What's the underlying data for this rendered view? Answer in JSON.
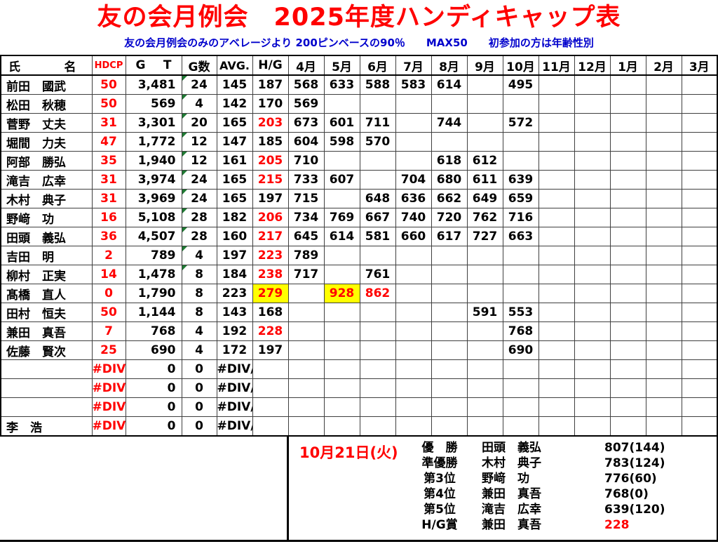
{
  "title": "友の会月例会　2025年度ハンディキャップ表",
  "subtitle": "友の会月例会のみのアベレージより 200ピンベースの90％　　MAX50　　初参加の方は年齢性別",
  "colors": {
    "title_red": "#FF0000",
    "subtitle_blue": "#0000CC",
    "value_red": "#FF0000",
    "highlight_yellow": "#FFFF00",
    "triangle_green": "#1F7A33"
  },
  "table": {
    "headers": {
      "name_parts": [
        "氏",
        "名"
      ],
      "hdcp": "HDCP",
      "gt_parts": [
        "G",
        "T"
      ],
      "games": "G数",
      "avg": "AVG.",
      "hg": "H/G",
      "months": [
        "4月",
        "5月",
        "6月",
        "7月",
        "8月",
        "9月",
        "10月",
        "11月",
        "12月",
        "1月",
        "2月",
        "3月"
      ]
    },
    "rows": [
      {
        "name": "前田　國武",
        "hdcp": "50",
        "gt": "3,481",
        "games": "24",
        "avg": "145",
        "hg": "187",
        "hg_style": "",
        "triangle": true,
        "months": [
          "568",
          "633",
          "588",
          "583",
          "614",
          "",
          "495",
          "",
          "",
          "",
          "",
          ""
        ],
        "month_styles": {}
      },
      {
        "name": "松田　秋穂",
        "hdcp": "50",
        "gt": "569",
        "games": "4",
        "avg": "142",
        "hg": "170",
        "hg_style": "",
        "triangle": true,
        "months": [
          "569",
          "",
          "",
          "",
          "",
          "",
          "",
          "",
          "",
          "",
          "",
          ""
        ],
        "month_styles": {}
      },
      {
        "name": "菅野　丈夫",
        "hdcp": "31",
        "gt": "3,301",
        "games": "20",
        "avg": "165",
        "hg": "203",
        "hg_style": "red",
        "triangle": true,
        "months": [
          "673",
          "601",
          "711",
          "",
          "744",
          "",
          "572",
          "",
          "",
          "",
          "",
          ""
        ],
        "month_styles": {}
      },
      {
        "name": "堀間　力夫",
        "hdcp": "47",
        "gt": "1,772",
        "games": "12",
        "avg": "147",
        "hg": "185",
        "hg_style": "",
        "triangle": true,
        "months": [
          "604",
          "598",
          "570",
          "",
          "",
          "",
          "",
          "",
          "",
          "",
          "",
          ""
        ],
        "month_styles": {}
      },
      {
        "name": "阿部　勝弘",
        "hdcp": "35",
        "gt": "1,940",
        "games": "12",
        "avg": "161",
        "hg": "205",
        "hg_style": "red",
        "triangle": true,
        "months": [
          "710",
          "",
          "",
          "",
          "618",
          "612",
          "",
          "",
          "",
          "",
          "",
          ""
        ],
        "month_styles": {}
      },
      {
        "name": "滝吉　広幸",
        "hdcp": "31",
        "gt": "3,974",
        "games": "24",
        "avg": "165",
        "hg": "215",
        "hg_style": "red",
        "triangle": true,
        "months": [
          "733",
          "607",
          "",
          "704",
          "680",
          "611",
          "639",
          "",
          "",
          "",
          "",
          ""
        ],
        "month_styles": {}
      },
      {
        "name": "木村　典子",
        "hdcp": "31",
        "gt": "3,969",
        "games": "24",
        "avg": "165",
        "hg": "197",
        "hg_style": "",
        "triangle": true,
        "months": [
          "715",
          "",
          "648",
          "636",
          "662",
          "649",
          "659",
          "",
          "",
          "",
          "",
          ""
        ],
        "month_styles": {}
      },
      {
        "name": "野﨑　功",
        "hdcp": "16",
        "gt": "5,108",
        "games": "28",
        "avg": "182",
        "hg": "206",
        "hg_style": "red",
        "triangle": true,
        "months": [
          "734",
          "769",
          "667",
          "740",
          "720",
          "762",
          "716",
          "",
          "",
          "",
          "",
          ""
        ],
        "month_styles": {}
      },
      {
        "name": "田頭　義弘",
        "hdcp": "36",
        "gt": "4,507",
        "games": "28",
        "avg": "160",
        "hg": "217",
        "hg_style": "red",
        "triangle": true,
        "months": [
          "645",
          "614",
          "581",
          "660",
          "617",
          "727",
          "663",
          "",
          "",
          "",
          "",
          ""
        ],
        "month_styles": {}
      },
      {
        "name": "吉田　明",
        "hdcp": "2",
        "gt": "789",
        "games": "4",
        "avg": "197",
        "hg": "223",
        "hg_style": "red",
        "triangle": true,
        "months": [
          "789",
          "",
          "",
          "",
          "",
          "",
          "",
          "",
          "",
          "",
          "",
          ""
        ],
        "month_styles": {}
      },
      {
        "name": "柳村　正実",
        "hdcp": "14",
        "gt": "1,478",
        "games": "8",
        "avg": "184",
        "hg": "238",
        "hg_style": "red",
        "triangle": true,
        "months": [
          "717",
          "",
          "761",
          "",
          "",
          "",
          "",
          "",
          "",
          "",
          "",
          ""
        ],
        "month_styles": {}
      },
      {
        "name": "髙橋　直人",
        "hdcp": "0",
        "gt": "1,790",
        "games": "8",
        "avg": "223",
        "hg": "279",
        "hg_style": "red-yellow",
        "triangle": false,
        "months": [
          "",
          "928",
          "862",
          "",
          "",
          "",
          "",
          "",
          "",
          "",
          "",
          ""
        ],
        "month_styles": {
          "1": "red-yellow",
          "2": "red"
        }
      },
      {
        "name": "田村　恒夫",
        "hdcp": "50",
        "gt": "1,144",
        "games": "8",
        "avg": "143",
        "hg": "168",
        "hg_style": "",
        "triangle": false,
        "months": [
          "",
          "",
          "",
          "",
          "",
          "591",
          "553",
          "",
          "",
          "",
          "",
          ""
        ],
        "month_styles": {}
      },
      {
        "name": "兼田　真吾",
        "hdcp": "7",
        "gt": "768",
        "games": "4",
        "avg": "192",
        "hg": "228",
        "hg_style": "red",
        "triangle": false,
        "months": [
          "",
          "",
          "",
          "",
          "",
          "",
          "768",
          "",
          "",
          "",
          "",
          ""
        ],
        "month_styles": {}
      },
      {
        "name": "佐藤　賢次",
        "hdcp": "25",
        "gt": "690",
        "games": "4",
        "avg": "172",
        "hg": "197",
        "hg_style": "",
        "triangle": false,
        "months": [
          "",
          "",
          "",
          "",
          "",
          "",
          "690",
          "",
          "",
          "",
          "",
          ""
        ],
        "month_styles": {}
      },
      {
        "name": "",
        "hdcp": "#DIV/0!",
        "gt": "0",
        "games": "0",
        "avg": "#DIV/0!",
        "hg": "",
        "hg_style": "",
        "triangle": false,
        "months": [
          "",
          "",
          "",
          "",
          "",
          "",
          "",
          "",
          "",
          "",
          "",
          ""
        ],
        "month_styles": {}
      },
      {
        "name": "",
        "hdcp": "#DIV/0!",
        "gt": "0",
        "games": "0",
        "avg": "#DIV/0!",
        "hg": "",
        "hg_style": "",
        "triangle": false,
        "months": [
          "",
          "",
          "",
          "",
          "",
          "",
          "",
          "",
          "",
          "",
          "",
          ""
        ],
        "month_styles": {}
      },
      {
        "name": "",
        "hdcp": "#DIV/0!",
        "gt": "0",
        "games": "0",
        "avg": "#DIV/0!",
        "hg": "",
        "hg_style": "",
        "triangle": false,
        "months": [
          "",
          "",
          "",
          "",
          "",
          "",
          "",
          "",
          "",
          "",
          "",
          ""
        ],
        "month_styles": {}
      },
      {
        "name": "李　浩",
        "hdcp": "#DIV/0!",
        "gt": "0",
        "games": "0",
        "avg": "#DIV/0!",
        "hg": "",
        "hg_style": "",
        "triangle": false,
        "months": [
          "",
          "",
          "",
          "",
          "",
          "",
          "",
          "",
          "",
          "",
          "",
          ""
        ],
        "month_styles": {}
      }
    ]
  },
  "footer": {
    "date": "10月21日(火)",
    "results": [
      {
        "rank": "優　勝",
        "name": "田頭　義弘",
        "score": "807(144)",
        "score_red": false
      },
      {
        "rank": "準優勝",
        "name": "木村　典子",
        "score": "783(124)",
        "score_red": false
      },
      {
        "rank": "第3位",
        "name": "野﨑　功",
        "score": "776(60)",
        "score_red": false
      },
      {
        "rank": "第4位",
        "name": "兼田　真吾",
        "score": "768(0)",
        "score_red": false
      },
      {
        "rank": "第5位",
        "name": "滝吉　広幸",
        "score": "639(120)",
        "score_red": false
      },
      {
        "rank": "H/G賞",
        "name": "兼田　真吾",
        "score": "228",
        "score_red": true
      }
    ]
  }
}
